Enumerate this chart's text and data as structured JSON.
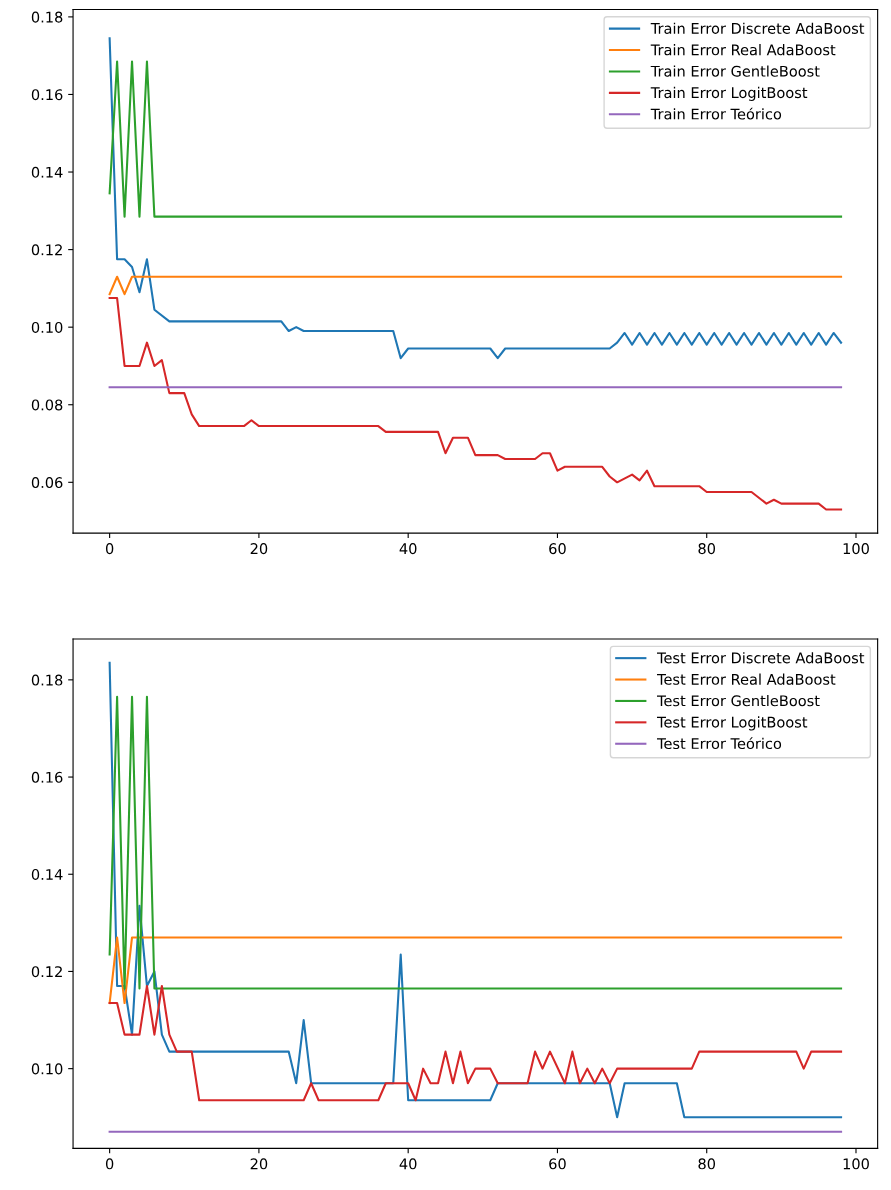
{
  "chart_data": [
    {
      "type": "line",
      "legend": "top right",
      "xlim": [
        -4.9,
        102.9
      ],
      "ylim": [
        0.0469,
        0.1819
      ],
      "xticks": [
        0,
        20,
        40,
        60,
        80,
        100
      ],
      "yticks": [
        {
          "value": 0.06,
          "label": "0.06"
        },
        {
          "value": 0.08,
          "label": "0.08"
        },
        {
          "value": 0.1,
          "label": "0.10"
        },
        {
          "value": 0.12,
          "label": "0.12"
        },
        {
          "value": 0.14,
          "label": "0.14"
        },
        {
          "value": 0.16,
          "label": "0.16"
        },
        {
          "value": 0.18,
          "label": "0.18"
        }
      ],
      "series": [
        {
          "name": "Train Error Discrete AdaBoost",
          "color": "#1f77b4",
          "x": [
            0,
            1,
            2,
            3,
            4,
            5,
            6,
            8,
            23,
            24,
            25,
            26,
            38,
            39,
            40,
            51,
            52,
            53,
            67,
            68,
            69,
            70,
            71,
            72,
            73,
            74,
            75,
            76,
            77,
            78,
            79,
            80,
            81,
            82,
            83,
            84,
            85,
            86,
            87,
            88,
            89,
            90,
            91,
            92,
            93,
            94,
            95,
            96,
            97,
            98
          ],
          "values": [
            0.1745,
            0.1175,
            0.1175,
            0.1155,
            0.109,
            0.1175,
            0.1045,
            0.1015,
            0.1015,
            0.099,
            0.1,
            0.099,
            0.099,
            0.092,
            0.0945,
            0.0945,
            0.092,
            0.0945,
            0.0945,
            0.096,
            0.0985,
            0.0955,
            0.0985,
            0.0955,
            0.0985,
            0.0955,
            0.0985,
            0.0955,
            0.0985,
            0.0955,
            0.0985,
            0.0955,
            0.0985,
            0.0955,
            0.0985,
            0.0955,
            0.0985,
            0.0955,
            0.0985,
            0.0955,
            0.0985,
            0.0955,
            0.0985,
            0.0955,
            0.0985,
            0.0955,
            0.0985,
            0.0955,
            0.0985,
            0.096
          ]
        },
        {
          "name": "Train Error Real AdaBoost",
          "color": "#ff7f0e",
          "x": [
            0,
            1,
            2,
            3,
            98
          ],
          "values": [
            0.1085,
            0.113,
            0.1085,
            0.113,
            0.113
          ]
        },
        {
          "name": "Train Error GentleBoost",
          "color": "#2ca02c",
          "x": [
            0,
            1,
            2,
            3,
            4,
            5,
            6,
            98
          ],
          "values": [
            0.1345,
            0.1685,
            0.1285,
            0.1685,
            0.1285,
            0.1685,
            0.1285,
            0.1285
          ]
        },
        {
          "name": "Train Error LogitBoost",
          "color": "#d62728",
          "x": [
            0,
            1,
            2,
            4,
            5,
            6,
            7,
            8,
            10,
            11,
            12,
            18,
            19,
            20,
            36,
            37,
            44,
            45,
            46,
            48,
            49,
            52,
            53,
            57,
            58,
            59,
            60,
            61,
            66,
            67,
            68,
            70,
            71,
            72,
            73,
            79,
            80,
            86,
            88,
            89,
            90,
            95,
            96,
            98
          ],
          "values": [
            0.1075,
            0.1075,
            0.09,
            0.09,
            0.096,
            0.09,
            0.0915,
            0.083,
            0.083,
            0.0775,
            0.0745,
            0.0745,
            0.076,
            0.0745,
            0.0745,
            0.073,
            0.073,
            0.0675,
            0.0715,
            0.0715,
            0.067,
            0.067,
            0.066,
            0.066,
            0.0675,
            0.0675,
            0.063,
            0.064,
            0.064,
            0.0615,
            0.06,
            0.062,
            0.0605,
            0.063,
            0.059,
            0.059,
            0.0575,
            0.0575,
            0.0545,
            0.0555,
            0.0545,
            0.0545,
            0.053,
            0.053
          ]
        },
        {
          "name": "Train Error Teórico",
          "color": "#9467bd",
          "x": [
            0,
            98
          ],
          "values": [
            0.0845,
            0.0845
          ]
        }
      ]
    },
    {
      "type": "line",
      "legend": "top right",
      "xlim": [
        -4.9,
        102.9
      ],
      "ylim": [
        0.0836,
        0.1884
      ],
      "xticks": [
        0,
        20,
        40,
        60,
        80,
        100
      ],
      "yticks": [
        {
          "value": 0.1,
          "label": "0.10"
        },
        {
          "value": 0.12,
          "label": "0.12"
        },
        {
          "value": 0.14,
          "label": "0.14"
        },
        {
          "value": 0.16,
          "label": "0.16"
        },
        {
          "value": 0.18,
          "label": "0.18"
        }
      ],
      "series": [
        {
          "name": "Test Error Discrete AdaBoost",
          "color": "#1f77b4",
          "x": [
            0,
            1,
            2,
            3,
            4,
            5,
            6,
            7,
            8,
            24,
            25,
            26,
            27,
            38,
            39,
            40,
            51,
            52,
            67,
            68,
            69,
            76,
            77,
            98
          ],
          "values": [
            0.1835,
            0.117,
            0.117,
            0.107,
            0.1335,
            0.117,
            0.12,
            0.107,
            0.1035,
            0.1035,
            0.097,
            0.11,
            0.097,
            0.097,
            0.1235,
            0.0935,
            0.0935,
            0.097,
            0.097,
            0.09,
            0.097,
            0.097,
            0.09,
            0.09
          ]
        },
        {
          "name": "Test Error Real AdaBoost",
          "color": "#ff7f0e",
          "x": [
            0,
            1,
            2,
            3,
            98
          ],
          "values": [
            0.1135,
            0.127,
            0.1135,
            0.127,
            0.127
          ]
        },
        {
          "name": "Test Error GentleBoost",
          "color": "#2ca02c",
          "x": [
            0,
            1,
            2,
            3,
            4,
            5,
            6,
            98
          ],
          "values": [
            0.1235,
            0.1765,
            0.1165,
            0.1765,
            0.1165,
            0.1765,
            0.1165,
            0.1165
          ]
        },
        {
          "name": "Test Error LogitBoost",
          "color": "#d62728",
          "x": [
            0,
            1,
            2,
            4,
            5,
            6,
            7,
            8,
            9,
            11,
            12,
            26,
            27,
            28,
            36,
            37,
            40,
            41,
            42,
            43,
            44,
            45,
            46,
            47,
            48,
            49,
            51,
            52,
            56,
            57,
            58,
            59,
            61,
            62,
            63,
            64,
            65,
            66,
            67,
            68,
            78,
            79,
            92,
            93,
            94,
            98
          ],
          "values": [
            0.1135,
            0.1135,
            0.107,
            0.107,
            0.117,
            0.107,
            0.117,
            0.107,
            0.1035,
            0.1035,
            0.0935,
            0.0935,
            0.097,
            0.0935,
            0.0935,
            0.097,
            0.097,
            0.0935,
            0.1,
            0.097,
            0.097,
            0.1035,
            0.097,
            0.1035,
            0.097,
            0.1,
            0.1,
            0.097,
            0.097,
            0.1035,
            0.1,
            0.1035,
            0.097,
            0.1035,
            0.097,
            0.1,
            0.097,
            0.1,
            0.097,
            0.1,
            0.1,
            0.1035,
            0.1035,
            0.1,
            0.1035,
            0.1035
          ]
        },
        {
          "name": "Test Error Teórico",
          "color": "#9467bd",
          "x": [
            0,
            98
          ],
          "values": [
            0.087,
            0.087
          ]
        }
      ]
    }
  ]
}
